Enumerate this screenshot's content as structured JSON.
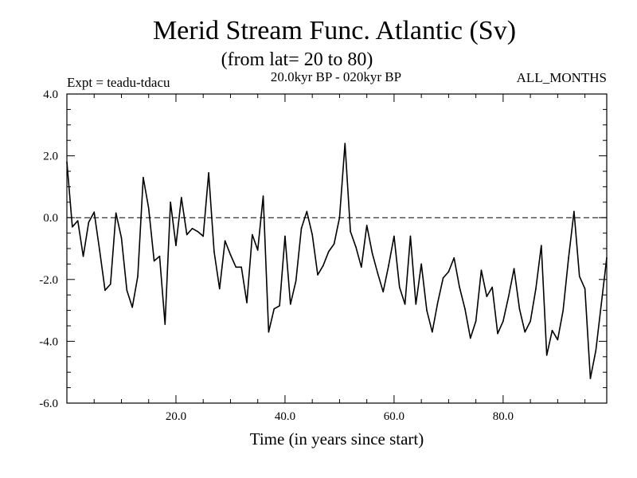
{
  "chart_data": {
    "type": "line",
    "title": "Merid Stream Func. Atlantic (Sv)",
    "subtitle": "(from lat= 20 to 80)",
    "expt_label": "Expt = teadu-tdacu",
    "period_label": "20.0kyr BP - 020kyr BP",
    "months_label": "ALL_MONTHS",
    "xlabel": "Time (in years since start)",
    "ylabel": "",
    "xlim": [
      0,
      99
    ],
    "ylim": [
      -6,
      4
    ],
    "x_major_ticks": [
      20,
      40,
      60,
      80
    ],
    "x_tick_labels": [
      "20.0",
      "40.0",
      "60.0",
      "80.0"
    ],
    "y_major_ticks": [
      -6,
      -4,
      -2,
      0,
      2,
      4
    ],
    "y_tick_labels": [
      "-6.0",
      "-4.0",
      "-2.0",
      "0.0",
      "2.0",
      "4.0"
    ],
    "reference_line": 0,
    "line_color": "#000000",
    "series": [
      {
        "name": "Merid Stream Func.",
        "x": [
          0,
          1,
          2,
          3,
          4,
          5,
          6,
          7,
          8,
          9,
          10,
          11,
          12,
          13,
          14,
          15,
          16,
          17,
          18,
          19,
          20,
          21,
          22,
          23,
          24,
          25,
          26,
          27,
          28,
          29,
          30,
          31,
          32,
          33,
          34,
          35,
          36,
          37,
          38,
          39,
          40,
          41,
          42,
          43,
          44,
          45,
          46,
          47,
          48,
          49,
          50,
          51,
          52,
          53,
          54,
          55,
          56,
          57,
          58,
          59,
          60,
          61,
          62,
          63,
          64,
          65,
          66,
          67,
          68,
          69,
          70,
          71,
          72,
          73,
          74,
          75,
          76,
          77,
          78,
          79,
          80,
          81,
          82,
          83,
          84,
          85,
          86,
          87,
          88,
          89,
          90,
          91,
          92,
          93,
          94,
          95,
          96,
          97,
          98,
          99
        ],
        "values": [
          1.8,
          -0.3,
          -0.1,
          -1.25,
          -0.15,
          0.18,
          -1.05,
          -2.35,
          -2.15,
          0.15,
          -0.65,
          -2.35,
          -2.9,
          -1.9,
          1.3,
          0.3,
          -1.4,
          -1.25,
          -3.45,
          0.5,
          -0.9,
          0.65,
          -0.55,
          -0.35,
          -0.45,
          -0.6,
          1.45,
          -1.1,
          -2.3,
          -0.75,
          -1.2,
          -1.6,
          -1.6,
          -2.75,
          -0.55,
          -1.05,
          0.7,
          -3.7,
          -2.95,
          -2.85,
          -0.6,
          -2.8,
          -2.05,
          -0.35,
          0.2,
          -0.55,
          -1.85,
          -1.55,
          -1.1,
          -0.85,
          0.0,
          2.4,
          -0.45,
          -0.95,
          -1.6,
          -0.25,
          -1.15,
          -1.8,
          -2.4,
          -1.55,
          -0.6,
          -2.25,
          -2.8,
          -0.6,
          -2.8,
          -1.5,
          -3.0,
          -3.7,
          -2.75,
          -1.95,
          -1.75,
          -1.3,
          -2.25,
          -2.95,
          -3.9,
          -3.35,
          -1.7,
          -2.55,
          -2.25,
          -3.75,
          -3.35,
          -2.55,
          -1.65,
          -2.95,
          -3.7,
          -3.35,
          -2.3,
          -0.9,
          -4.45,
          -3.65,
          -3.95,
          -3.0,
          -1.3,
          0.2,
          -1.9,
          -2.3,
          -5.2,
          -4.3,
          -2.8,
          -1.3
        ]
      }
    ]
  }
}
